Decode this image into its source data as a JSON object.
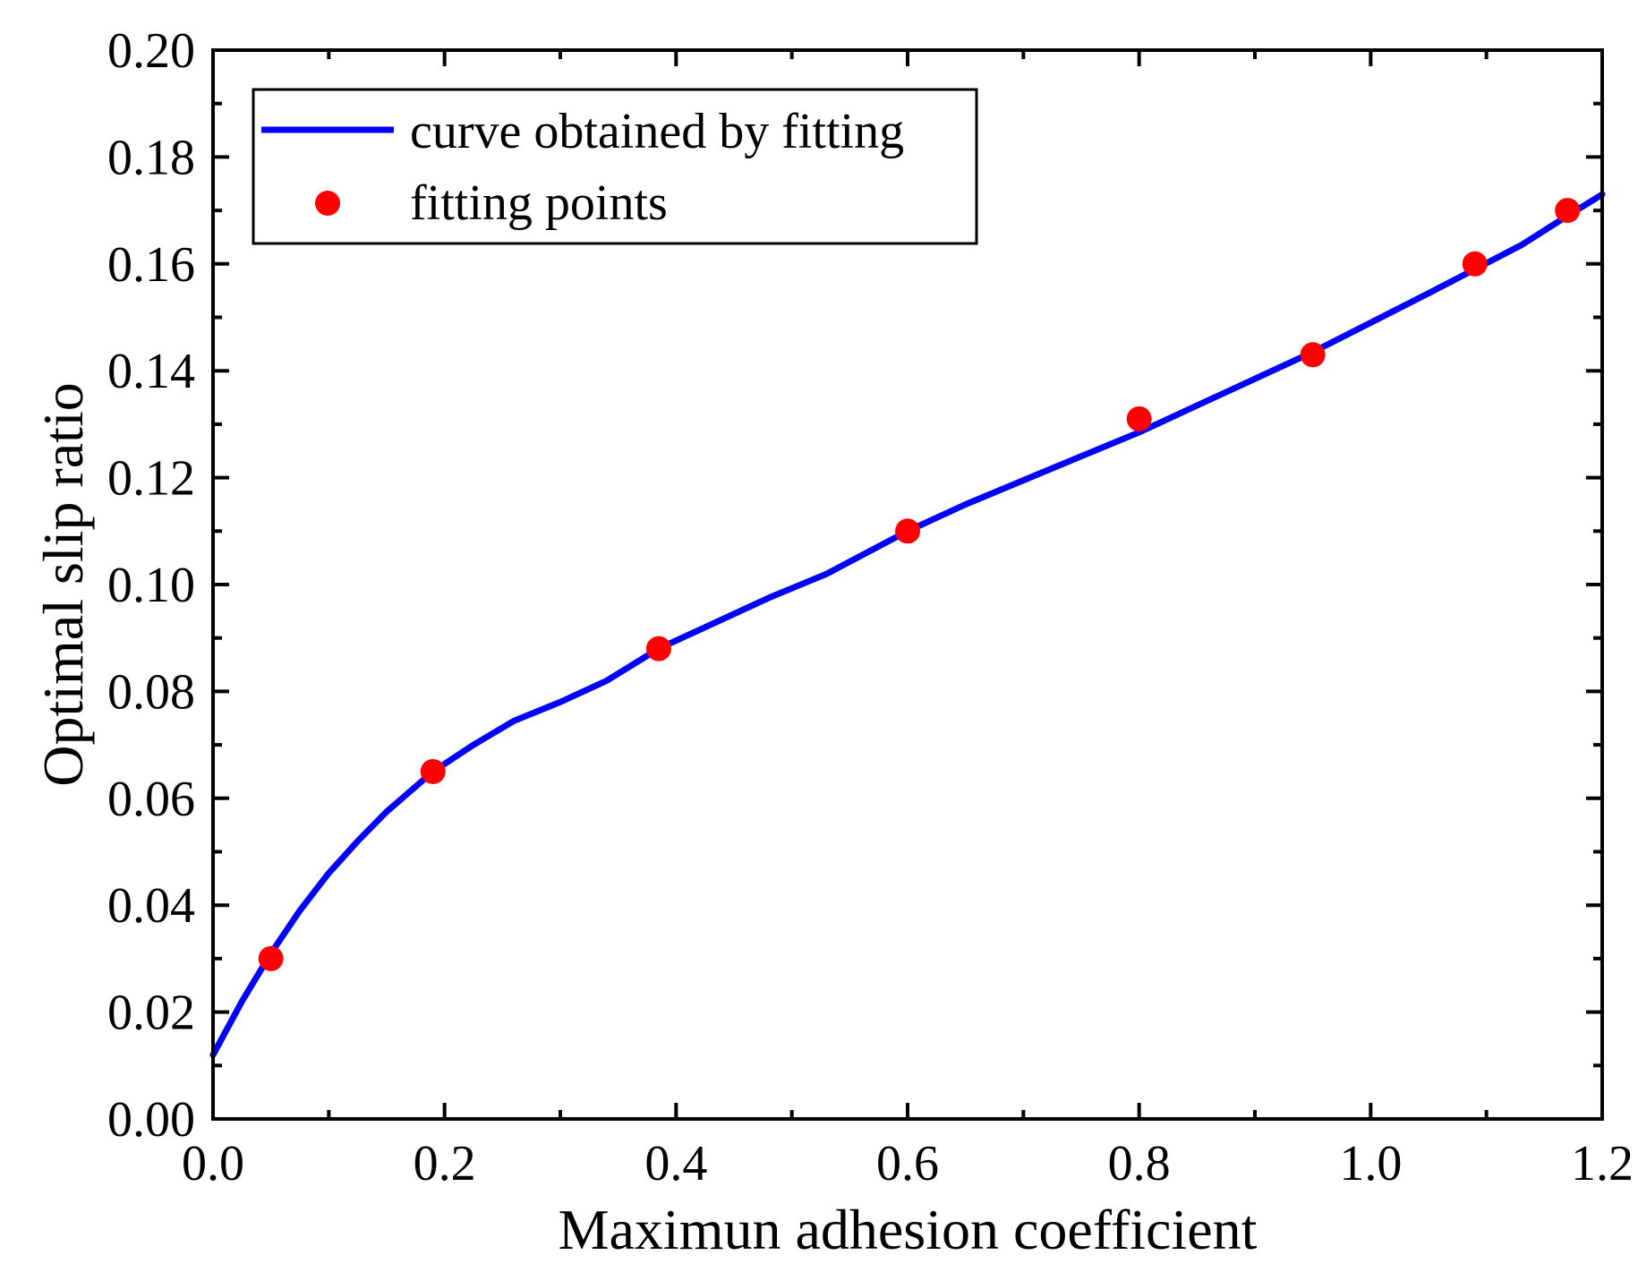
{
  "chart_data": {
    "type": "line",
    "xlabel": "Maximun adhesion coefficient",
    "ylabel": "Optimal slip ratio",
    "xlim": [
      0.0,
      1.2
    ],
    "ylim": [
      0.0,
      0.2
    ],
    "x_ticks": [
      "0.0",
      "0.2",
      "0.4",
      "0.6",
      "0.8",
      "1.0",
      "1.2"
    ],
    "y_ticks": [
      "0.00",
      "0.02",
      "0.04",
      "0.06",
      "0.08",
      "0.10",
      "0.12",
      "0.14",
      "0.16",
      "0.18",
      "0.20"
    ],
    "grid": false,
    "legend_position": "top-left",
    "series": [
      {
        "name": "curve obtained by fitting",
        "kind": "line",
        "color": "#0000ff",
        "x": [
          0.0,
          0.025,
          0.05,
          0.075,
          0.1,
          0.125,
          0.15,
          0.19,
          0.225,
          0.26,
          0.3,
          0.34,
          0.385,
          0.43,
          0.48,
          0.53,
          0.6,
          0.65,
          0.7,
          0.75,
          0.8,
          0.85,
          0.9,
          0.95,
          1.0,
          1.05,
          1.09,
          1.13,
          1.17,
          1.2
        ],
        "y": [
          0.012,
          0.022,
          0.031,
          0.039,
          0.046,
          0.052,
          0.0575,
          0.065,
          0.07,
          0.0745,
          0.078,
          0.082,
          0.088,
          0.0925,
          0.0975,
          0.102,
          0.11,
          0.115,
          0.1195,
          0.124,
          0.1285,
          0.1335,
          0.1385,
          0.1435,
          0.149,
          0.1545,
          0.159,
          0.1635,
          0.169,
          0.173
        ]
      },
      {
        "name": "fitting points",
        "kind": "scatter",
        "color": "#ff0000",
        "x": [
          0.05,
          0.19,
          0.385,
          0.6,
          0.8,
          0.95,
          1.09,
          1.17
        ],
        "y": [
          0.03,
          0.065,
          0.088,
          0.11,
          0.131,
          0.143,
          0.16,
          0.17
        ]
      }
    ]
  }
}
